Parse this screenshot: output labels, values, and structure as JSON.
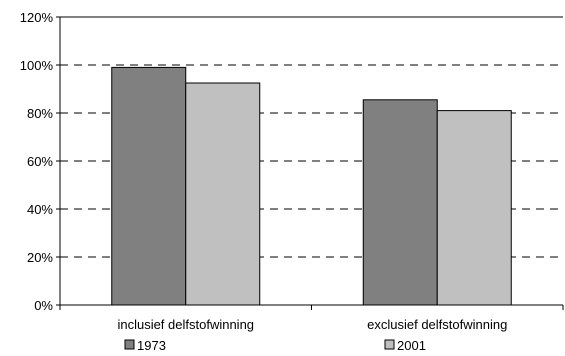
{
  "chart_data": {
    "type": "bar",
    "title": "",
    "xlabel": "",
    "ylabel": "",
    "categories": [
      "inclusief delfstofwinning",
      "exclusief delfstofwinning"
    ],
    "series": [
      {
        "name": "1973",
        "values": [
          99,
          85.5
        ],
        "color": "#808080"
      },
      {
        "name": "2001",
        "values": [
          92.5,
          81
        ],
        "color": "#c0c0c0"
      }
    ],
    "ylim": [
      0,
      120
    ],
    "yticks": [
      0,
      20,
      40,
      60,
      80,
      100,
      120
    ],
    "ytick_labels": [
      "0%",
      "20%",
      "40%",
      "60%",
      "80%",
      "100%",
      "120%"
    ],
    "grid": "horizontal dashed",
    "legend_position": "bottom"
  }
}
